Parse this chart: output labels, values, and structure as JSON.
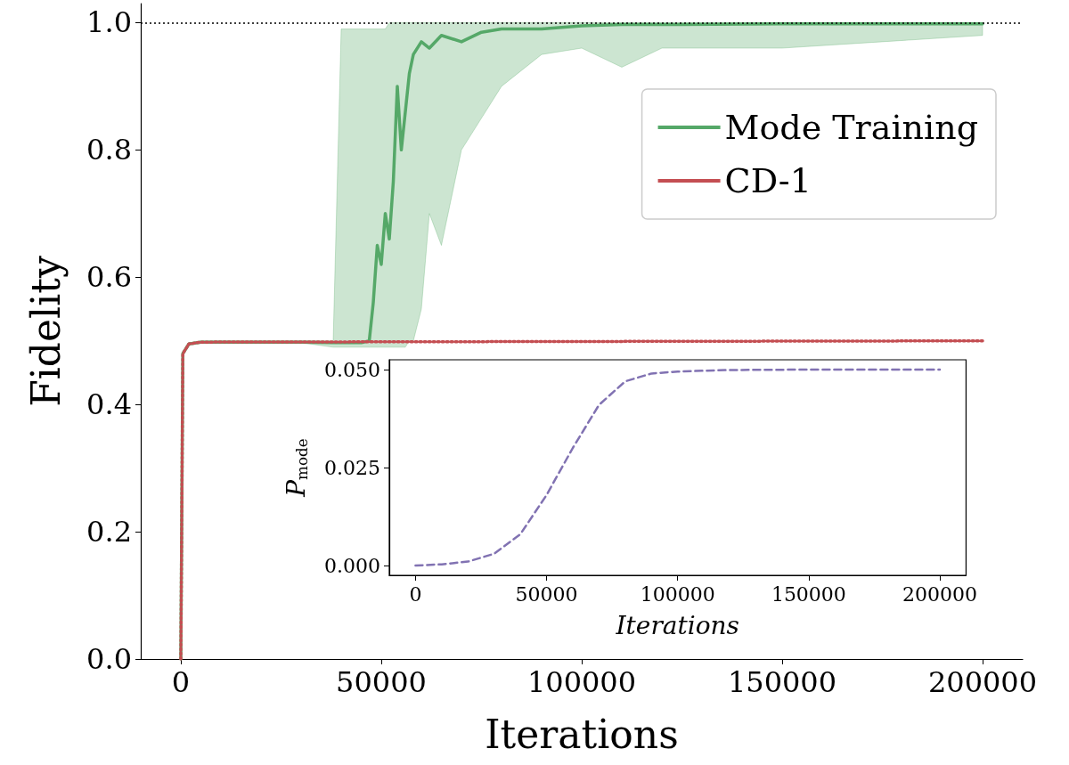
{
  "chart_data": [
    {
      "type": "line",
      "xlabel": "Iterations",
      "ylabel": "Fidelity",
      "xlim": [
        -10000,
        210000
      ],
      "ylim": [
        0,
        1.03
      ],
      "xticks": [
        0,
        50000,
        100000,
        150000,
        200000
      ],
      "yticks": [
        {
          "value": 0,
          "label": "0.0"
        },
        {
          "value": 0.2,
          "label": "0.2"
        },
        {
          "value": 0.4,
          "label": "0.4"
        },
        {
          "value": 0.6,
          "label": "0.6"
        },
        {
          "value": 0.8,
          "label": "0.8"
        },
        {
          "value": 1.0,
          "label": "1.0"
        }
      ],
      "grid": false,
      "legend": "top right",
      "ref_lines": [
        {
          "axis": "y",
          "value": 1.0,
          "color": "#000000",
          "line_style": "dotted"
        }
      ],
      "series": [
        {
          "name": "Mode Training",
          "color": "#55a868",
          "line_style": "solid",
          "x": [
            0,
            500,
            2000,
            5000,
            30000,
            38000,
            40000,
            45000,
            47000,
            48000,
            49000,
            50000,
            51000,
            52000,
            53000,
            54000,
            55000,
            56000,
            57000,
            58000,
            60000,
            62000,
            65000,
            70000,
            75000,
            80000,
            90000,
            100000,
            110000,
            120000,
            150000,
            200000
          ],
          "values": [
            0,
            0.48,
            0.495,
            0.498,
            0.498,
            0.497,
            0.497,
            0.497,
            0.5,
            0.56,
            0.65,
            0.62,
            0.7,
            0.66,
            0.75,
            0.9,
            0.8,
            0.86,
            0.92,
            0.95,
            0.97,
            0.96,
            0.98,
            0.97,
            0.985,
            0.99,
            0.99,
            0.995,
            0.997,
            0.997,
            0.998,
            0.998
          ],
          "lower": [
            0,
            0.48,
            0.495,
            0.498,
            0.497,
            0.49,
            0.49,
            0.49,
            0.49,
            0.49,
            0.49,
            0.49,
            0.49,
            0.49,
            0.49,
            0.49,
            0.49,
            0.49,
            0.5,
            0.5,
            0.55,
            0.7,
            0.65,
            0.8,
            0.85,
            0.9,
            0.95,
            0.96,
            0.93,
            0.96,
            0.96,
            0.98
          ],
          "upper": [
            0,
            0.48,
            0.497,
            0.5,
            0.5,
            0.5,
            0.99,
            0.99,
            0.99,
            0.99,
            0.99,
            0.99,
            0.99,
            1.0,
            1.0,
            1.0,
            1.0,
            1.0,
            1.0,
            1.0,
            1.0,
            1.0,
            1.0,
            1.0,
            1.0,
            1.0,
            1.0,
            1.0,
            1.0,
            1.0,
            1.0,
            1.0
          ]
        },
        {
          "name": "CD-1",
          "color": "#c44e52",
          "line_style": "dotted",
          "x": [
            0,
            500,
            2000,
            5000,
            200000
          ],
          "values": [
            0,
            0.48,
            0.495,
            0.498,
            0.5
          ]
        }
      ]
    },
    {
      "type": "line",
      "xlabel": "Iterations",
      "ylabel": "P$_{mode}$",
      "xlim": [
        -10000,
        210000
      ],
      "ylim": [
        -0.0025,
        0.0525
      ],
      "xticks": [
        0,
        50000,
        100000,
        150000,
        200000
      ],
      "yticks": [
        {
          "value": 0,
          "label": "0.000"
        },
        {
          "value": 0.025,
          "label": "0.025"
        },
        {
          "value": 0.05,
          "label": "0.050"
        }
      ],
      "grid": false,
      "series": [
        {
          "color": "#8172b2",
          "line_style": "dashed",
          "x": [
            0,
            10000,
            20000,
            30000,
            40000,
            50000,
            60000,
            70000,
            80000,
            90000,
            100000,
            120000,
            150000,
            200000
          ],
          "values": [
            0,
            0.0003,
            0.001,
            0.003,
            0.008,
            0.018,
            0.03,
            0.041,
            0.047,
            0.049,
            0.0495,
            0.0499,
            0.05,
            0.05
          ]
        }
      ]
    }
  ]
}
